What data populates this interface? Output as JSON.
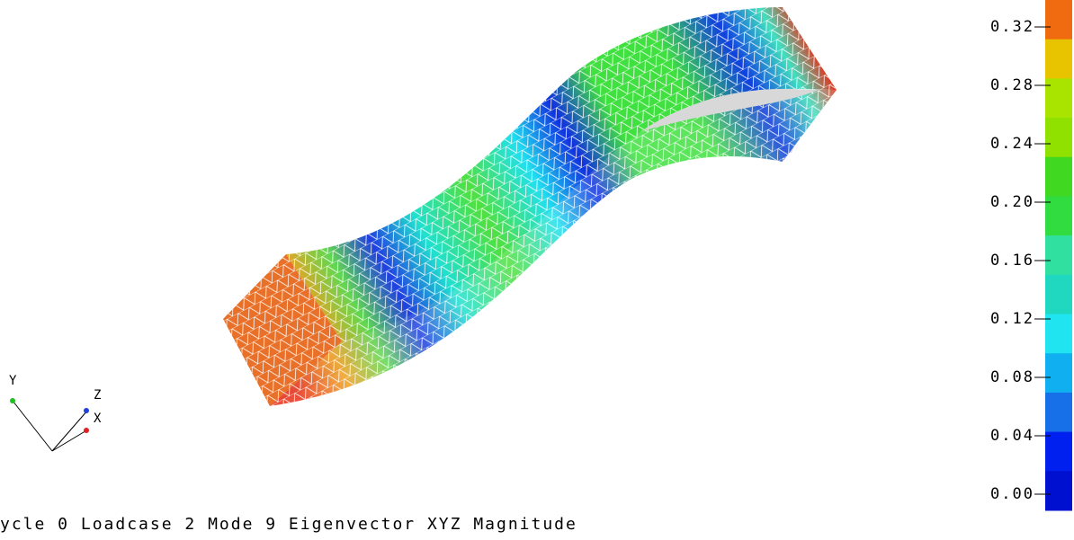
{
  "colorbar": {
    "ticks": [
      "0.32",
      "0.28",
      "0.24",
      "0.20",
      "0.16",
      "0.12",
      "0.08",
      "0.04",
      "0.00"
    ]
  },
  "triad": {
    "y": "Y",
    "z": "Z",
    "x": "X"
  },
  "caption": "ycle 0 Loadcase 2 Mode 9 Eigenvector XYZ Magnitude"
}
